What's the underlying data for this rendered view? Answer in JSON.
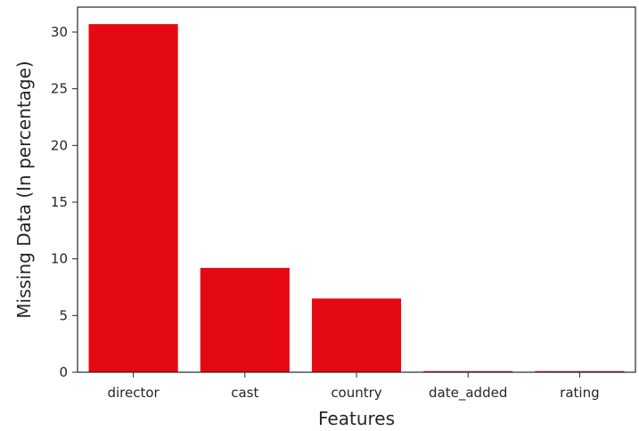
{
  "chart_data": {
    "type": "bar",
    "title": "",
    "xlabel": "Features",
    "ylabel": "Missing Data (In percentage)",
    "categories": [
      "director",
      "cast",
      "country",
      "date_added",
      "rating"
    ],
    "values": [
      30.7,
      9.2,
      6.5,
      0.1,
      0.1
    ],
    "ylim": [
      0,
      32.2
    ],
    "yticks": [
      0,
      5,
      10,
      15,
      20,
      25,
      30
    ],
    "grid": false,
    "legend": "none",
    "bar_color": "#e50914"
  }
}
